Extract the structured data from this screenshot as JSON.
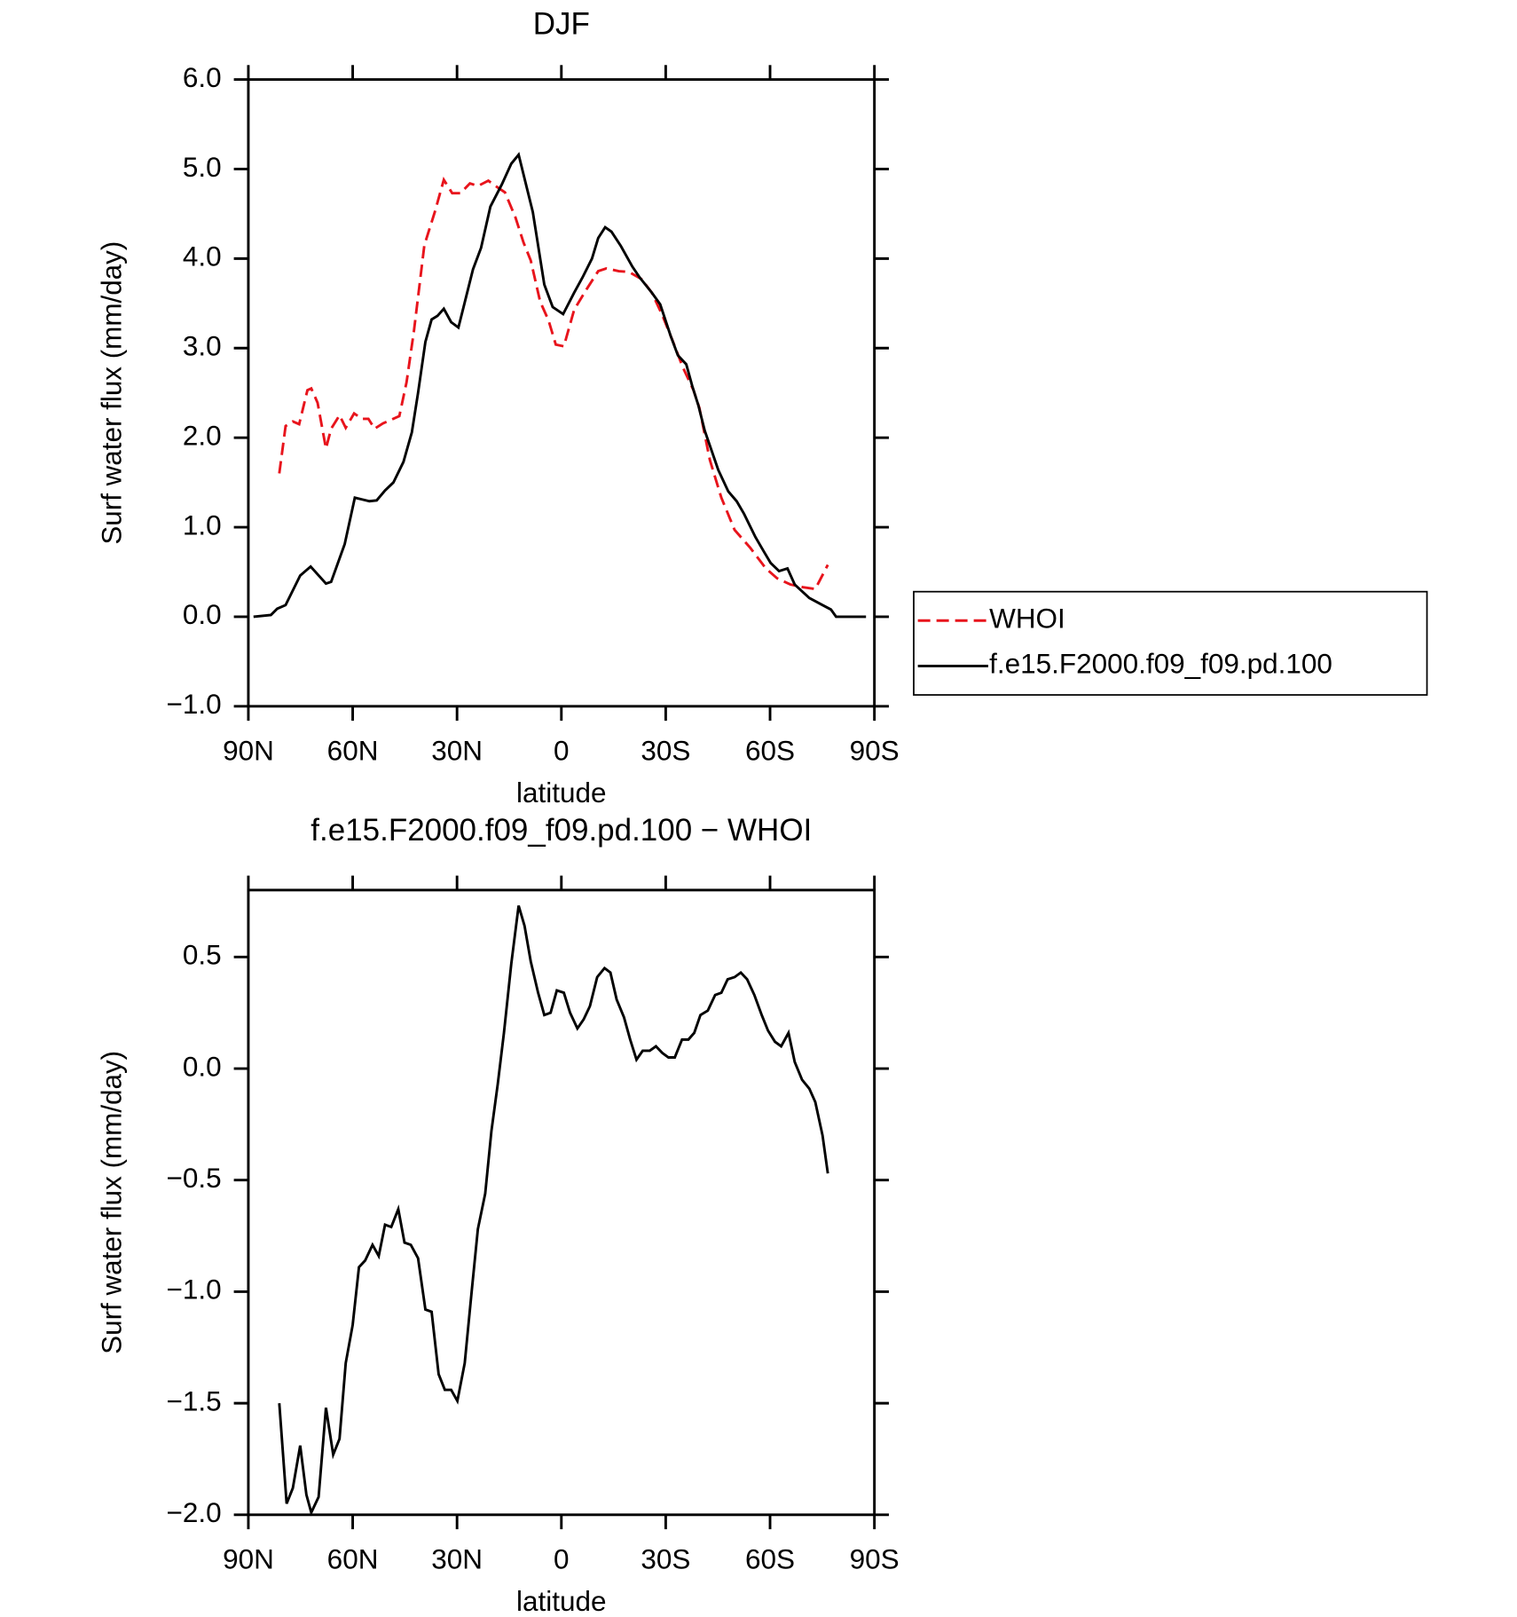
{
  "chart_data": [
    {
      "type": "line",
      "title": "DJF",
      "xlabel": "latitude",
      "ylabel": "Surf water flux (mm/day)",
      "xlim": [
        90,
        -90
      ],
      "xticks": [
        {
          "value": 90,
          "label": "90N"
        },
        {
          "value": 60,
          "label": "60N"
        },
        {
          "value": 30,
          "label": "30N"
        },
        0,
        {
          "value": -30,
          "label": "30S"
        },
        {
          "value": -60,
          "label": "60S"
        },
        {
          "value": -90,
          "label": "90S"
        }
      ],
      "ylim": [
        -1,
        6
      ],
      "yticks": [
        {
          "value": -1,
          "label": "−1.0"
        },
        {
          "value": 0,
          "label": "0.0"
        },
        {
          "value": 1,
          "label": "1.0"
        },
        {
          "value": 2,
          "label": "2.0"
        },
        {
          "value": 3,
          "label": "3.0"
        },
        {
          "value": 4,
          "label": "4.0"
        },
        {
          "value": 5,
          "label": "5.0"
        },
        {
          "value": 6,
          "label": "6.0"
        }
      ],
      "legend": "right",
      "series": [
        {
          "name": "WHOI",
          "color": "#e8141c",
          "style": "dashed",
          "x": [
            81.1,
            79.3,
            77.2,
            75.4,
            73.0,
            71.9,
            70.1,
            67.7,
            66.2,
            63.8,
            62.0,
            59.6,
            57.3,
            55.5,
            53.7,
            51.3,
            48.9,
            46.6,
            44.5,
            42.4,
            39.4,
            36.4,
            33.8,
            31.4,
            29.0,
            26.3,
            24.0,
            21.0,
            18.9,
            16.2,
            13.2,
            10.9,
            8.8,
            6.1,
            3.7,
            1.6,
            -0.7,
            -3.7,
            -7.3,
            -10.6,
            -12.9,
            -16.5,
            -19.5,
            -23.1,
            -26.0,
            -29.0,
            -32.0,
            -35.0,
            -38.0,
            -39.7,
            -42.7,
            -46.0,
            -49.8,
            -54.3,
            -58.8,
            -62.0,
            -65.9,
            -69.5,
            -73.0,
            -76.6
          ],
          "values": [
            1.6,
            2.13,
            2.18,
            2.15,
            2.53,
            2.55,
            2.39,
            1.88,
            2.1,
            2.25,
            2.11,
            2.27,
            2.21,
            2.21,
            2.1,
            2.16,
            2.2,
            2.24,
            2.62,
            3.19,
            4.15,
            4.52,
            4.88,
            4.73,
            4.73,
            4.84,
            4.81,
            4.87,
            4.81,
            4.74,
            4.46,
            4.18,
            3.98,
            3.52,
            3.31,
            3.04,
            3.02,
            3.43,
            3.66,
            3.86,
            3.89,
            3.86,
            3.85,
            3.77,
            3.62,
            3.37,
            3.08,
            2.78,
            2.53,
            2.33,
            1.75,
            1.33,
            0.97,
            0.77,
            0.54,
            0.43,
            0.36,
            0.33,
            0.31,
            0.58
          ]
        },
        {
          "name": "f.e15.F2000.f09_f09.pd.100",
          "color": "#000000",
          "style": "solid",
          "x": [
            88.5,
            83.5,
            81.7,
            79.3,
            75.1,
            72.1,
            67.7,
            66.2,
            62.3,
            59.4,
            57.3,
            55.2,
            53.1,
            50.7,
            48.3,
            45.4,
            43.0,
            41.2,
            39.1,
            37.3,
            35.6,
            33.8,
            31.7,
            29.6,
            27.8,
            25.4,
            23.1,
            20.4,
            17.1,
            14.4,
            12.3,
            8.2,
            4.9,
            2.5,
            -0.5,
            -3.7,
            -6.1,
            -8.8,
            -10.6,
            -12.6,
            -14.4,
            -17.1,
            -20.4,
            -22.5,
            -26.0,
            -28.4,
            -31.4,
            -33.5,
            -35.9,
            -37.6,
            -39.4,
            -41.2,
            -45.1,
            -48.0,
            -50.4,
            -52.5,
            -55.8,
            -58.2,
            -60.2,
            -62.6,
            -65.0,
            -67.1,
            -71.3,
            -75.1,
            -77.5,
            -79.0,
            -82.6,
            -87.6
          ],
          "values": [
            0,
            0.02,
            0.09,
            0.13,
            0.46,
            0.56,
            0.37,
            0.39,
            0.81,
            1.33,
            1.31,
            1.29,
            1.3,
            1.41,
            1.5,
            1.73,
            2.06,
            2.5,
            3.07,
            3.32,
            3.36,
            3.44,
            3.29,
            3.23,
            3.51,
            3.88,
            4.12,
            4.58,
            4.83,
            5.06,
            5.16,
            4.52,
            3.71,
            3.46,
            3.38,
            3.62,
            3.79,
            4.0,
            4.23,
            4.35,
            4.3,
            4.14,
            3.91,
            3.79,
            3.62,
            3.49,
            3.14,
            2.92,
            2.82,
            2.58,
            2.36,
            2.08,
            1.64,
            1.4,
            1.29,
            1.15,
            0.89,
            0.73,
            0.6,
            0.51,
            0.54,
            0.36,
            0.21,
            0.13,
            0.08,
            0,
            0,
            0
          ]
        }
      ]
    },
    {
      "type": "line",
      "title": "f.e15.F2000.f09_f09.pd.100 − WHOI",
      "xlabel": "latitude",
      "ylabel": "Surf water flux (mm/day)",
      "xlim": [
        90,
        -90
      ],
      "xticks": [
        {
          "value": 90,
          "label": "90N"
        },
        {
          "value": 60,
          "label": "60N"
        },
        {
          "value": 30,
          "label": "30N"
        },
        0,
        {
          "value": -30,
          "label": "30S"
        },
        {
          "value": -60,
          "label": "60S"
        },
        {
          "value": -90,
          "label": "90S"
        }
      ],
      "ylim": [
        -2,
        0.8
      ],
      "yticks": [
        {
          "value": -2,
          "label": "−2.0"
        },
        {
          "value": -1.5,
          "label": "−1.5"
        },
        {
          "value": -1,
          "label": "−1.0"
        },
        {
          "value": -0.5,
          "label": "−0.5"
        },
        {
          "value": 0,
          "label": "0.0"
        },
        0.5
      ],
      "series": [
        {
          "color": "#000000",
          "style": "solid",
          "x": [
            81.1,
            79.0,
            77.2,
            75.1,
            73.3,
            71.9,
            69.8,
            67.7,
            65.6,
            63.8,
            62.0,
            60.0,
            58.2,
            56.4,
            54.3,
            52.5,
            50.7,
            48.9,
            46.9,
            45.1,
            43.3,
            41.2,
            39.1,
            37.3,
            35.3,
            33.5,
            31.7,
            29.9,
            27.8,
            25.8,
            24.0,
            21.9,
            20.1,
            18.3,
            16.5,
            14.4,
            12.3,
            10.6,
            8.8,
            6.7,
            4.9,
            3.1,
            1.3,
            -0.7,
            -2.5,
            -4.6,
            -6.4,
            -8.2,
            -10.3,
            -12.4,
            -14.1,
            -15.9,
            -18.0,
            -19.8,
            -21.6,
            -23.4,
            -25.4,
            -27.2,
            -29.0,
            -30.8,
            -32.6,
            -34.7,
            -36.5,
            -38.2,
            -40.0,
            -42.1,
            -44.2,
            -46.0,
            -47.8,
            -49.8,
            -51.6,
            -53.4,
            -55.5,
            -57.6,
            -59.4,
            -61.4,
            -63.2,
            -65.3,
            -67.1,
            -69.2,
            -71.3,
            -73.0,
            -75.1,
            -76.6
          ],
          "values": [
            -1.5,
            -1.95,
            -1.88,
            -1.69,
            -1.91,
            -1.99,
            -1.92,
            -1.52,
            -1.73,
            -1.66,
            -1.32,
            -1.15,
            -0.89,
            -0.86,
            -0.79,
            -0.84,
            -0.7,
            -0.71,
            -0.63,
            -0.78,
            -0.79,
            -0.85,
            -1.08,
            -1.09,
            -1.37,
            -1.44,
            -1.44,
            -1.49,
            -1.32,
            -1.0,
            -0.72,
            -0.56,
            -0.28,
            -0.07,
            0.16,
            0.47,
            0.73,
            0.64,
            0.48,
            0.34,
            0.24,
            0.25,
            0.35,
            0.34,
            0.25,
            0.18,
            0.22,
            0.28,
            0.41,
            0.45,
            0.43,
            0.31,
            0.23,
            0.13,
            0.04,
            0.08,
            0.08,
            0.1,
            0.07,
            0.05,
            0.05,
            0.13,
            0.13,
            0.16,
            0.24,
            0.26,
            0.33,
            0.34,
            0.4,
            0.41,
            0.43,
            0.4,
            0.33,
            0.24,
            0.17,
            0.12,
            0.1,
            0.16,
            0.03,
            -0.05,
            -0.09,
            -0.15,
            -0.3,
            -0.47
          ]
        }
      ]
    }
  ]
}
